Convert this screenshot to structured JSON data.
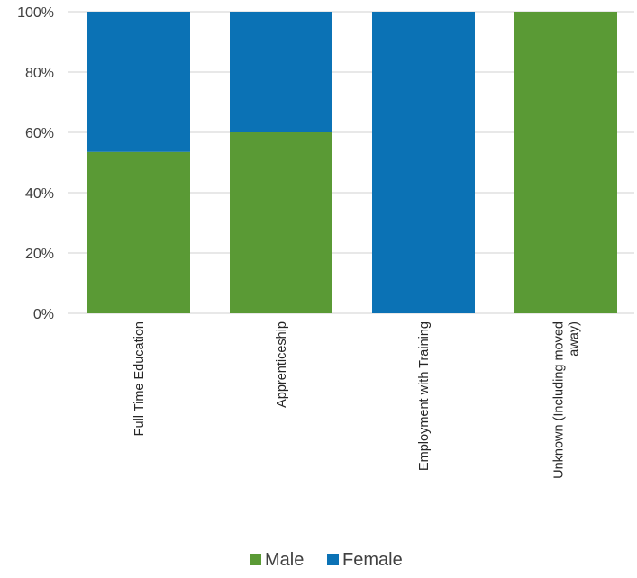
{
  "chart_data": {
    "type": "bar",
    "stacked": true,
    "percent": true,
    "categories": [
      [
        "Full Time Education"
      ],
      [
        "Apprenticeship"
      ],
      [
        "Employment with Training"
      ],
      [
        "Unknown (Including moved",
        "away)"
      ]
    ],
    "series": [
      {
        "name": "Male",
        "color": "#5a9a35",
        "values": [
          53.5,
          60,
          0,
          100
        ]
      },
      {
        "name": "Female",
        "color": "#0b72b5",
        "values": [
          46.5,
          40,
          100,
          0
        ]
      }
    ],
    "yticks": [
      "0%",
      "20%",
      "40%",
      "60%",
      "80%",
      "100%"
    ],
    "ylim": [
      0,
      100
    ],
    "grid": true,
    "gridColor": "#d9d9d9",
    "legend": "bottom",
    "title": "",
    "xlabel": "",
    "ylabel": ""
  }
}
